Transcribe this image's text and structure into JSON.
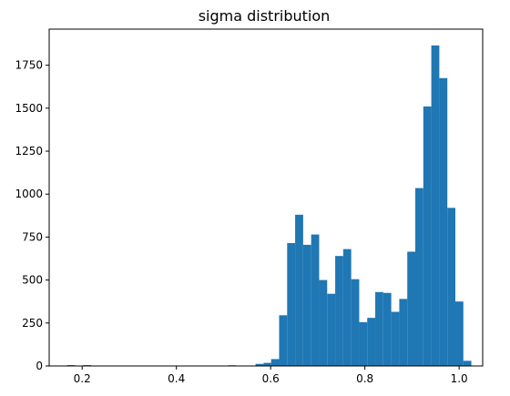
{
  "chart_data": {
    "type": "bar",
    "title": "sigma distribution",
    "xlabel": "",
    "ylabel": "",
    "xlim": [
      0.13,
      1.05
    ],
    "ylim": [
      0,
      1960
    ],
    "xticks": [
      0.2,
      0.4,
      0.6,
      0.8,
      1.0
    ],
    "xtick_labels": [
      "0.2",
      "0.4",
      "0.6",
      "0.8",
      "1.0"
    ],
    "yticks": [
      0,
      250,
      500,
      750,
      1000,
      1250,
      1500,
      1750
    ],
    "ytick_labels": [
      "0",
      "250",
      "500",
      "750",
      "1000",
      "1250",
      "1500",
      "1750"
    ],
    "grid": false,
    "bar_color": "#1f77b4",
    "bins": [
      {
        "x0": 0.168,
        "x1": 0.185,
        "value": 5
      },
      {
        "x0": 0.202,
        "x1": 0.219,
        "value": 5
      },
      {
        "x0": 0.51,
        "x1": 0.527,
        "value": 4
      },
      {
        "x0": 0.568,
        "x1": 0.585,
        "value": 12
      },
      {
        "x0": 0.585,
        "x1": 0.601,
        "value": 18
      },
      {
        "x0": 0.601,
        "x1": 0.618,
        "value": 40
      },
      {
        "x0": 0.618,
        "x1": 0.635,
        "value": 295
      },
      {
        "x0": 0.635,
        "x1": 0.652,
        "value": 715
      },
      {
        "x0": 0.652,
        "x1": 0.669,
        "value": 880
      },
      {
        "x0": 0.669,
        "x1": 0.686,
        "value": 705
      },
      {
        "x0": 0.686,
        "x1": 0.703,
        "value": 765
      },
      {
        "x0": 0.703,
        "x1": 0.72,
        "value": 500
      },
      {
        "x0": 0.72,
        "x1": 0.737,
        "value": 420
      },
      {
        "x0": 0.737,
        "x1": 0.754,
        "value": 640
      },
      {
        "x0": 0.754,
        "x1": 0.771,
        "value": 680
      },
      {
        "x0": 0.771,
        "x1": 0.788,
        "value": 505
      },
      {
        "x0": 0.788,
        "x1": 0.805,
        "value": 255
      },
      {
        "x0": 0.805,
        "x1": 0.822,
        "value": 280
      },
      {
        "x0": 0.822,
        "x1": 0.839,
        "value": 430
      },
      {
        "x0": 0.839,
        "x1": 0.856,
        "value": 425
      },
      {
        "x0": 0.856,
        "x1": 0.873,
        "value": 315
      },
      {
        "x0": 0.873,
        "x1": 0.89,
        "value": 390
      },
      {
        "x0": 0.89,
        "x1": 0.907,
        "value": 665
      },
      {
        "x0": 0.907,
        "x1": 0.924,
        "value": 1035
      },
      {
        "x0": 0.924,
        "x1": 0.941,
        "value": 1510
      },
      {
        "x0": 0.941,
        "x1": 0.958,
        "value": 1865
      },
      {
        "x0": 0.958,
        "x1": 0.975,
        "value": 1675
      },
      {
        "x0": 0.975,
        "x1": 0.992,
        "value": 920
      },
      {
        "x0": 0.992,
        "x1": 1.009,
        "value": 375
      },
      {
        "x0": 1.009,
        "x1": 1.026,
        "value": 30
      }
    ]
  }
}
